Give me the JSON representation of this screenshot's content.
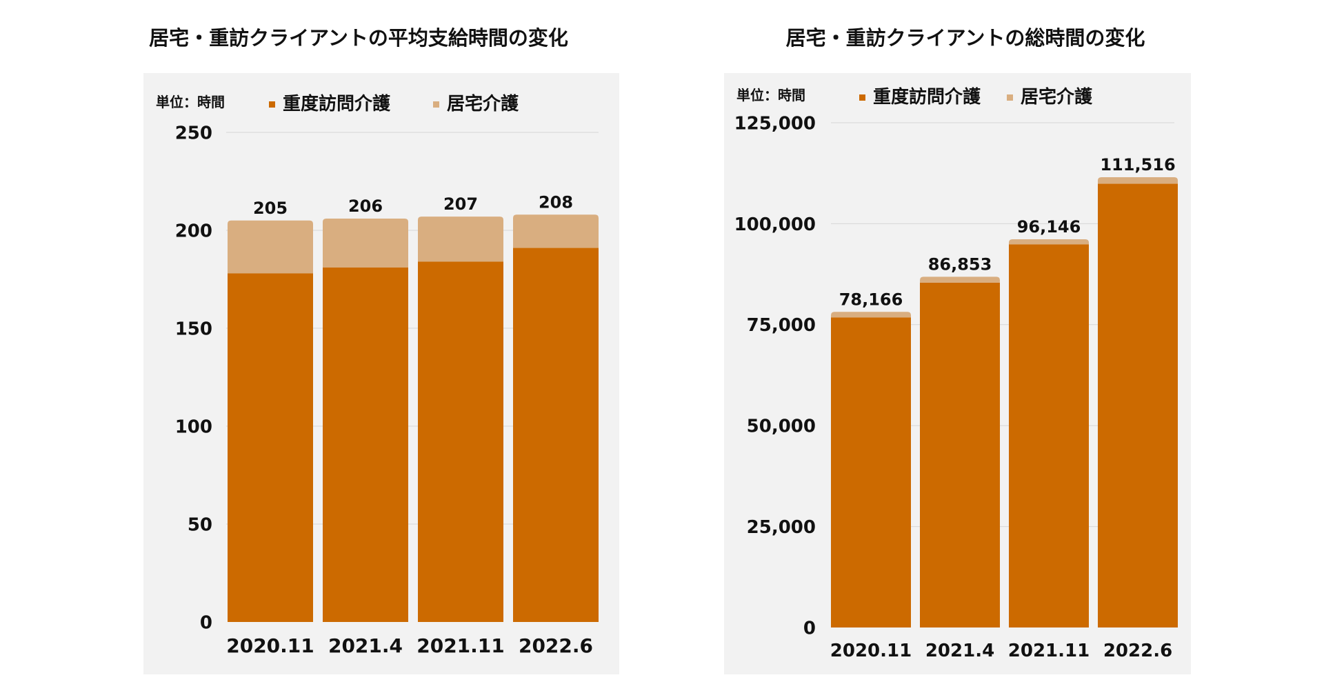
{
  "chart_data": [
    {
      "type": "bar",
      "stacked": true,
      "title": "居宅・重訪クライアントの平均支給時間の変化",
      "unit_label": "単位：時間",
      "categories": [
        "2020.11",
        "2021.4",
        "2021.11",
        "2022.6"
      ],
      "series": [
        {
          "name": "重度訪問介護",
          "values": [
            178,
            181,
            184,
            191
          ]
        },
        {
          "name": "居宅介護",
          "values": [
            27,
            25,
            23,
            17
          ]
        }
      ],
      "totals": [
        "205",
        "206",
        "207",
        "208"
      ],
      "ylim": [
        0,
        250
      ],
      "yticks": [
        0,
        50,
        100,
        150,
        200,
        250
      ],
      "ytick_labels": [
        "0",
        "50",
        "100",
        "150",
        "200",
        "250"
      ],
      "grid": true,
      "legend_position": "top"
    },
    {
      "type": "bar",
      "stacked": true,
      "title": "居宅・重訪クライアントの総時間の変化",
      "unit_label": "単位：時間",
      "categories": [
        "2020.11",
        "2021.4",
        "2021.11",
        "2022.6"
      ],
      "series": [
        {
          "name": "重度訪問介護",
          "values": [
            76800,
            85400,
            94900,
            109900
          ]
        },
        {
          "name": "居宅介護",
          "values": [
            1366,
            1453,
            1246,
            1616
          ]
        }
      ],
      "totals": [
        "78,166",
        "86,853",
        "96,146",
        "111,516"
      ],
      "ylim": [
        0,
        125000
      ],
      "yticks": [
        0,
        25000,
        50000,
        75000,
        100000,
        125000
      ],
      "ytick_labels": [
        "0",
        "25,000",
        "50,000",
        "75,000",
        "100,000",
        "125,000"
      ],
      "grid": true,
      "legend_position": "top"
    }
  ],
  "colors": {
    "heavy_visit_care": "#cc6a00",
    "home_care": "#d9ae80",
    "grid": "#d6d6d6"
  }
}
